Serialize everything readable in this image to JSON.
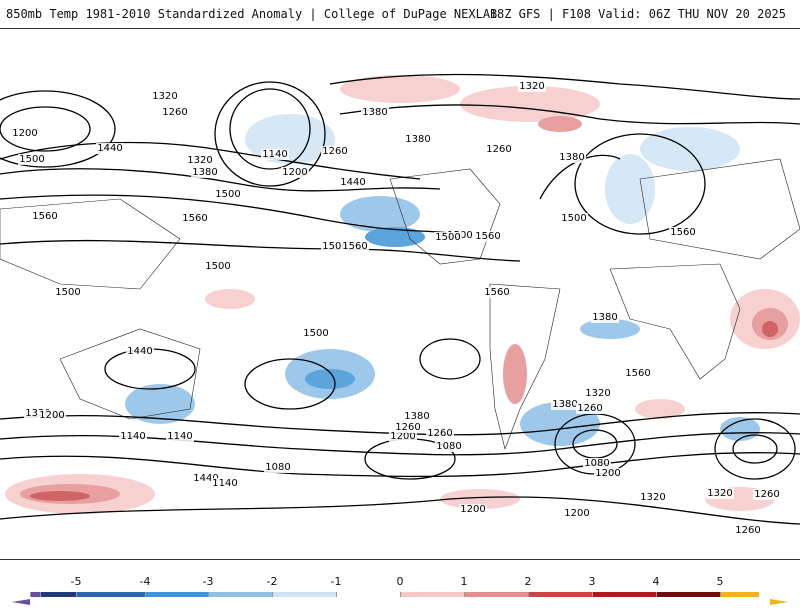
{
  "header": {
    "title": "850mb Temp 1981-2010 Standardized Anomaly | College of DuPage NEXLAB",
    "run_info": "18Z GFS | F108 Valid: 06Z THU NOV 20 2025"
  },
  "colorbar": {
    "labels": [
      "-5",
      "-4",
      "-3",
      "-2",
      "-1",
      "0",
      "1",
      "2",
      "3",
      "4",
      "5"
    ],
    "colors": [
      "#6a4ea3",
      "#1f3a7a",
      "#2d67b0",
      "#3f95d6",
      "#8ebfe6",
      "#cfe3f4",
      "#ffffff",
      "#f6c8c8",
      "#e48f90",
      "#c84848",
      "#a51c1c",
      "#6e0d0d",
      "#f2b21c"
    ]
  },
  "map": {
    "contour_labels": [
      "1320",
      "1260",
      "1200",
      "1440",
      "1500",
      "1320",
      "1380",
      "1140",
      "1260",
      "1200",
      "1500",
      "1440",
      "1380",
      "1380",
      "1320",
      "1260",
      "1380",
      "1500",
      "1560",
      "1500",
      "1560",
      "1560",
      "1500",
      "1560",
      "1500",
      "1560",
      "1500",
      "1500",
      "1440",
      "1500",
      "1560",
      "1380",
      "1320",
      "1380",
      "1260",
      "1320",
      "1200",
      "1140",
      "1140",
      "1080",
      "1440",
      "1380",
      "1260",
      "1200",
      "1080",
      "1260",
      "1560",
      "1200",
      "1080",
      "1320",
      "1260",
      "1320",
      "1140",
      "1200",
      "1200",
      "1260"
    ]
  }
}
